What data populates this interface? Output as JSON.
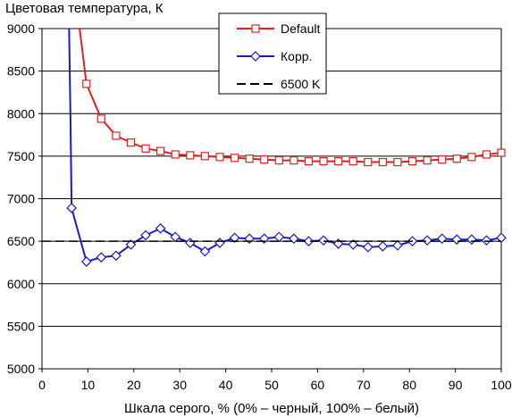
{
  "chart_data": {
    "type": "line",
    "title": "",
    "ylabel": "Цветовая температура, К",
    "xlabel": "Шкала серого, % (0% – черный, 100% – белый)",
    "xlim": [
      0,
      100
    ],
    "ylim": [
      5000,
      9000
    ],
    "xticks": [
      0,
      10,
      20,
      30,
      40,
      50,
      60,
      70,
      80,
      90,
      100
    ],
    "yticks": [
      5000,
      5500,
      6000,
      6500,
      7000,
      7500,
      8000,
      8500,
      9000
    ],
    "grid": "horizontal",
    "legend_position": "top-center",
    "series": [
      {
        "name": "Default",
        "color": "#e02020",
        "marker": "square",
        "x": [
          9.68,
          12.9,
          16.13,
          19.35,
          22.58,
          25.81,
          29.03,
          32.26,
          35.48,
          38.71,
          41.94,
          45.16,
          48.39,
          51.61,
          54.84,
          58.06,
          61.29,
          64.52,
          67.74,
          70.97,
          74.19,
          77.42,
          80.65,
          83.87,
          87.1,
          90.32,
          93.55,
          96.77,
          100
        ],
        "y": [
          8350,
          7940,
          7740,
          7660,
          7590,
          7560,
          7520,
          7510,
          7500,
          7490,
          7480,
          7470,
          7460,
          7450,
          7450,
          7440,
          7440,
          7440,
          7440,
          7430,
          7430,
          7430,
          7440,
          7450,
          7460,
          7470,
          7490,
          7520,
          7540
        ],
        "extra_segment": {
          "x": [
            8.2,
            9.68
          ],
          "y": [
            9000,
            8350
          ]
        }
      },
      {
        "name": "Корр.",
        "color": "#1a1ac8",
        "marker": "diamond",
        "x": [
          6.45,
          9.68,
          12.9,
          16.13,
          19.35,
          22.58,
          25.81,
          29.03,
          32.26,
          35.48,
          38.71,
          41.94,
          45.16,
          48.39,
          51.61,
          54.84,
          58.06,
          61.29,
          64.52,
          67.74,
          70.97,
          74.19,
          77.42,
          80.65,
          83.87,
          87.1,
          90.32,
          93.55,
          96.77,
          100
        ],
        "y": [
          6890,
          6260,
          6310,
          6330,
          6460,
          6570,
          6650,
          6550,
          6480,
          6380,
          6480,
          6540,
          6530,
          6530,
          6550,
          6530,
          6500,
          6510,
          6470,
          6460,
          6430,
          6440,
          6450,
          6500,
          6510,
          6530,
          6520,
          6520,
          6510,
          6540
        ],
        "extra_segment": {
          "x": [
            5.9,
            6.2,
            6.45
          ],
          "y": [
            9000,
            7950,
            6890
          ]
        }
      },
      {
        "name": "6500 K",
        "color": "#000000",
        "marker": "none",
        "dashed": true,
        "x": [
          0,
          100
        ],
        "y": [
          6500,
          6500
        ]
      }
    ]
  }
}
